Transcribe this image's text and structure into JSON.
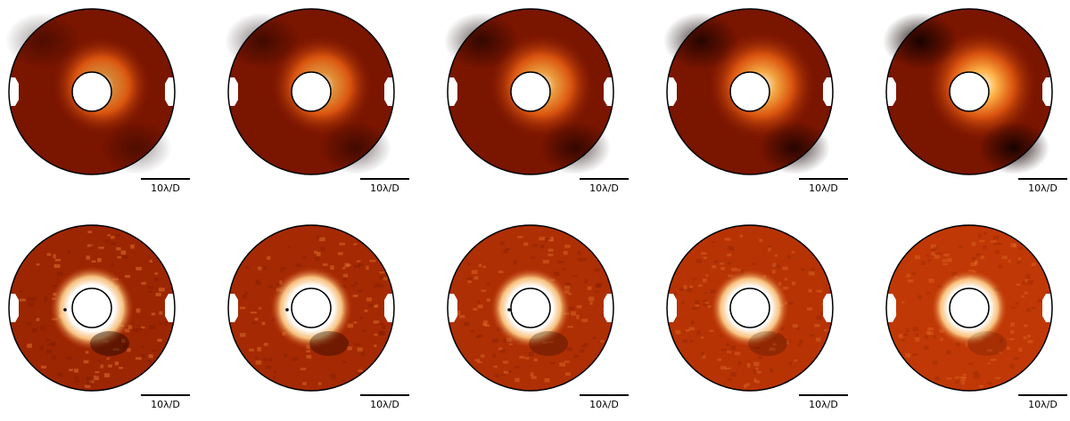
{
  "figure": {
    "rows": [
      {
        "name": "top",
        "panels": [
          {
            "scale_label": "10λ/D"
          },
          {
            "scale_label": "10λ/D"
          },
          {
            "scale_label": "10λ/D"
          },
          {
            "scale_label": "10λ/D"
          },
          {
            "scale_label": "10λ/D"
          }
        ]
      },
      {
        "name": "bottom",
        "panels": [
          {
            "scale_label": "10λ/D"
          },
          {
            "scale_label": "10λ/D"
          },
          {
            "scale_label": "10λ/D"
          },
          {
            "scale_label": "10λ/D"
          },
          {
            "scale_label": "10λ/D"
          }
        ]
      }
    ],
    "colors": {
      "background_dark": "#7a1500",
      "mid": "#c43a05",
      "bright": "#ffffff",
      "dark_lobe": "#140200",
      "outline": "#000000"
    }
  }
}
